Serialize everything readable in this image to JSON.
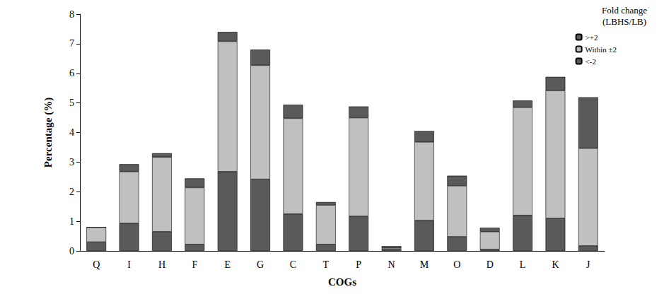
{
  "chart_data": {
    "type": "bar",
    "stacked": true,
    "legend": "top-right",
    "grid": false,
    "legend_title": "Fold change\n(LBHS/LB)",
    "x_label": "COGs",
    "y_label": "Percentage (%)",
    "categories": [
      "Q",
      "I",
      "H",
      "F",
      "E",
      "G",
      "C",
      "T",
      "P",
      "N",
      "M",
      "O",
      "D",
      "L",
      "K",
      "J"
    ],
    "ylim": [
      0,
      8
    ],
    "yticks": [
      0,
      1,
      2,
      3,
      4,
      5,
      6,
      7,
      8
    ],
    "series": [
      {
        "name": "<-2",
        "color": "#5a5a5a",
        "values": [
          0.3,
          0.93,
          0.65,
          0.22,
          2.68,
          2.42,
          1.25,
          0.22,
          1.17,
          0.05,
          1.03,
          0.48,
          0.05,
          1.2,
          1.1,
          0.17
        ]
      },
      {
        "name": "Within ±2",
        "color": "#c0c0c0",
        "values": [
          0.5,
          1.75,
          2.52,
          1.92,
          4.4,
          3.85,
          3.23,
          1.33,
          3.33,
          0.05,
          2.65,
          1.72,
          0.6,
          3.65,
          4.32,
          3.3
        ]
      },
      {
        "name": ">+2",
        "color": "#5a5a5a",
        "values": [
          0,
          0.25,
          0.13,
          0.31,
          0.32,
          0.53,
          0.46,
          0.1,
          0.38,
          0.06,
          0.37,
          0.34,
          0.13,
          0.23,
          0.46,
          1.72
        ]
      }
    ]
  }
}
